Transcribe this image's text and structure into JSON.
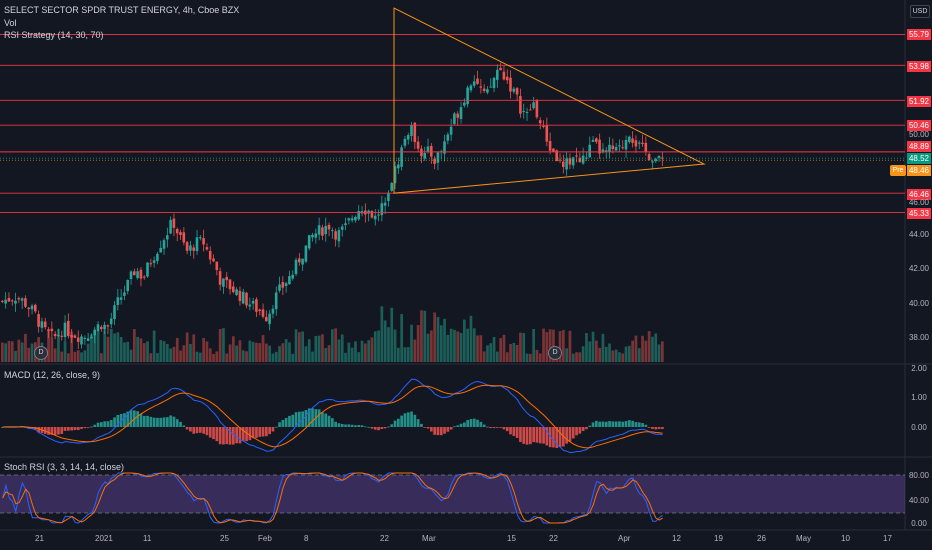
{
  "header": {
    "title": "SELECT SECTOR SPDR TRUST ENERGY, 4h, Cboe BZX",
    "vol": "Vol",
    "strategy": "RSI Strategy (14, 30, 70)",
    "macd": "MACD (12, 26, close, 9)",
    "stoch": "Stoch RSI (3, 3, 14, 14, close)"
  },
  "currency_button": "USD",
  "pre_market_label": "Pre",
  "dividend_icons": [
    "D",
    "D"
  ],
  "price_tags": [
    {
      "label": "55.79",
      "color": "#f23645"
    },
    {
      "label": "53.98",
      "color": "#f23645"
    },
    {
      "label": "51.92",
      "color": "#f23645"
    },
    {
      "label": "50.46",
      "color": "#f23645"
    },
    {
      "label": "48.89",
      "color": "#f23645"
    },
    {
      "label": "48.52",
      "color": "#089981"
    },
    {
      "label": "48.46",
      "color": "#f7931a"
    },
    {
      "label": "46.46",
      "color": "#f23645"
    },
    {
      "label": "45.33",
      "color": "#f23645"
    }
  ],
  "price_axis_labels": [
    "50.00",
    "46.00",
    "44.00",
    "42.00",
    "40.00",
    "38.00"
  ],
  "macd_axis_labels": [
    "2.00",
    "1.00",
    "0.00"
  ],
  "stoch_axis_labels": [
    "80.00",
    "40.00",
    "0.00"
  ],
  "time_axis_labels": [
    "21",
    "2021",
    "11",
    "25",
    "Feb",
    "8",
    "22",
    "Mar",
    "15",
    "22",
    "Apr",
    "12",
    "19",
    "26",
    "May",
    "10",
    "17"
  ],
  "colors": {
    "background": "#131722",
    "up": "#26a69a",
    "down": "#ef5350",
    "level_line": "#f23645",
    "triangle": "#f7931a",
    "macd_line": "#2962ff",
    "signal_line": "#ff6d00",
    "stoch_k": "#2962ff",
    "stoch_d": "#ff6d00",
    "stoch_band": "#7e57c2"
  },
  "chart_data": {
    "type": "candlestick",
    "series_note": "",
    "price_levels": [
      55.79,
      53.98,
      51.92,
      50.46,
      48.89,
      46.46,
      45.33
    ],
    "last_price": 48.52,
    "pre_market_price": 48.46,
    "ylim": [
      37.2,
      57.8
    ],
    "close_path": [
      [
        0,
        40.1
      ],
      [
        14,
        40.4
      ],
      [
        24,
        40.0
      ],
      [
        34,
        39.3
      ],
      [
        42,
        38.4
      ],
      [
        52,
        37.9
      ],
      [
        62,
        38.5
      ],
      [
        72,
        38.2
      ],
      [
        82,
        38.0
      ],
      [
        92,
        38.4
      ],
      [
        100,
        38.8
      ],
      [
        106,
        38.5
      ],
      [
        112,
        39.4
      ],
      [
        118,
        40.2
      ],
      [
        126,
        41.0
      ],
      [
        134,
        42.0
      ],
      [
        142,
        41.5
      ],
      [
        148,
        42.3
      ],
      [
        154,
        43.0
      ],
      [
        160,
        43.6
      ],
      [
        166,
        44.2
      ],
      [
        172,
        44.8
      ],
      [
        178,
        43.9
      ],
      [
        186,
        43.0
      ],
      [
        194,
        43.5
      ],
      [
        202,
        43.6
      ],
      [
        208,
        42.8
      ],
      [
        214,
        42.2
      ],
      [
        220,
        41.2
      ],
      [
        228,
        41.0
      ],
      [
        236,
        40.6
      ],
      [
        244,
        40.2
      ],
      [
        252,
        39.8
      ],
      [
        260,
        39.5
      ],
      [
        266,
        39.2
      ],
      [
        272,
        40.1
      ],
      [
        278,
        40.7
      ],
      [
        284,
        41.2
      ],
      [
        292,
        41.8
      ],
      [
        298,
        42.6
      ],
      [
        304,
        43.2
      ],
      [
        312,
        44.0
      ],
      [
        320,
        44.3
      ],
      [
        328,
        44.6
      ],
      [
        336,
        44.0
      ],
      [
        344,
        44.4
      ],
      [
        352,
        45.2
      ],
      [
        360,
        45.7
      ],
      [
        368,
        45.4
      ],
      [
        374,
        45.0
      ],
      [
        380,
        45.6
      ],
      [
        386,
        46.7
      ],
      [
        392,
        47.5
      ],
      [
        398,
        48.6
      ],
      [
        402,
        49.4
      ],
      [
        408,
        50.3
      ],
      [
        416,
        49.5
      ],
      [
        422,
        48.6
      ],
      [
        428,
        48.9
      ],
      [
        434,
        48.4
      ],
      [
        440,
        49.0
      ],
      [
        448,
        50.2
      ],
      [
        454,
        51.0
      ],
      [
        460,
        51.7
      ],
      [
        466,
        52.6
      ],
      [
        472,
        53.4
      ],
      [
        478,
        52.7
      ],
      [
        484,
        52.0
      ],
      [
        490,
        52.8
      ],
      [
        496,
        53.7
      ],
      [
        502,
        53.5
      ],
      [
        508,
        52.9
      ],
      [
        514,
        52.2
      ],
      [
        520,
        51.4
      ],
      [
        526,
        51.0
      ],
      [
        532,
        51.8
      ],
      [
        538,
        50.7
      ],
      [
        544,
        49.8
      ],
      [
        550,
        49.0
      ],
      [
        556,
        48.5
      ],
      [
        562,
        47.8
      ],
      [
        568,
        48.4
      ],
      [
        574,
        48.7
      ],
      [
        580,
        48.2
      ],
      [
        586,
        48.9
      ],
      [
        592,
        49.3
      ],
      [
        598,
        49.0
      ],
      [
        604,
        48.7
      ],
      [
        610,
        49.1
      ],
      [
        616,
        48.8
      ],
      [
        622,
        49.4
      ],
      [
        628,
        50.1
      ],
      [
        634,
        49.5
      ],
      [
        640,
        49.0
      ],
      [
        646,
        48.8
      ],
      [
        652,
        48.6
      ],
      [
        658,
        48.3
      ],
      [
        662,
        48.52
      ]
    ],
    "triangle": [
      [
        "2021-02-22",
        57.7
      ],
      [
        "2021-02-22",
        46.46
      ],
      [
        "2021-04-15",
        47.5
      ]
    ]
  }
}
